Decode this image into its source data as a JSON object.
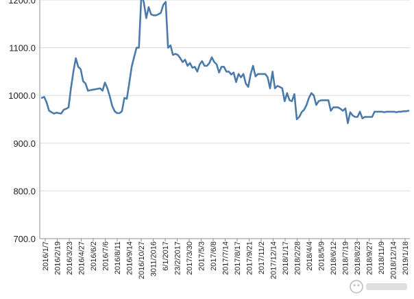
{
  "chart_data": {
    "type": "line",
    "title": "",
    "xlabel": "",
    "ylabel": "",
    "ylim": [
      700,
      1200
    ],
    "yticks": [
      "700.0",
      "800.0",
      "900.0",
      "1000.0",
      "1100.0",
      "1200.0"
    ],
    "grid": "horizontal",
    "legend": "none",
    "line_color": "#4a7aac",
    "x_tick_labels": [
      "2016/1/7",
      "2016/2/19",
      "2016/3/23",
      "2016/4/27",
      "2016/6/2",
      "2016/7/6",
      "2016/8/11",
      "2016/9/14",
      "2016/10/27",
      "3011/2016",
      "6/1/2017",
      "23/2/2017",
      "2017/3/30",
      "2017/5/3",
      "2017/6/8",
      "2017/7/14",
      "2017/8/17",
      "2017/9/21",
      "2017/11/2",
      "2017/12/14",
      "2018/1/17",
      "2018/2/28",
      "2018/4/4",
      "2018/5/9",
      "2018/6/12",
      "2018/7/19",
      "2018/8/23",
      "2018/9/27",
      "2018/11/9",
      "2018/12/14",
      "2019/1/18"
    ],
    "series": [
      {
        "values": [
          995,
          997,
          985,
          968,
          965,
          962,
          964,
          963,
          962,
          970,
          972,
          975,
          1015,
          1050,
          1078,
          1060,
          1055,
          1030,
          1025,
          1010,
          1011,
          1012,
          1013,
          1014,
          1015,
          1010,
          1027,
          1015,
          998,
          978,
          967,
          963,
          963,
          967,
          995,
          993,
          1025,
          1060,
          1080,
          1100,
          1100,
          1212,
          1195,
          1162,
          1185,
          1170,
          1168,
          1168,
          1170,
          1173,
          1190,
          1196,
          1100,
          1105,
          1085,
          1087,
          1085,
          1078,
          1070,
          1075,
          1062,
          1068,
          1058,
          1060,
          1050,
          1065,
          1072,
          1062,
          1062,
          1068,
          1080,
          1070,
          1065,
          1048,
          1060,
          1060,
          1050,
          1050,
          1044,
          1048,
          1028,
          1045,
          1038,
          1045,
          1025,
          1018,
          1045,
          1062,
          1040,
          1045,
          1045,
          1045,
          1045,
          1038,
          1015,
          1050,
          1015,
          1020,
          1018,
          1015,
          988,
          1005,
          990,
          988,
          1003,
          950,
          955,
          965,
          970,
          980,
          995,
          1005,
          1000,
          980,
          988,
          990,
          990,
          990,
          990,
          968,
          975,
          975,
          975,
          972,
          968,
          973,
          942,
          965,
          958,
          955,
          955,
          966,
          952,
          955,
          955,
          955,
          955,
          966,
          966,
          966,
          966,
          965,
          966,
          966,
          966,
          966,
          965,
          966,
          966,
          967,
          967,
          968
        ]
      }
    ]
  }
}
